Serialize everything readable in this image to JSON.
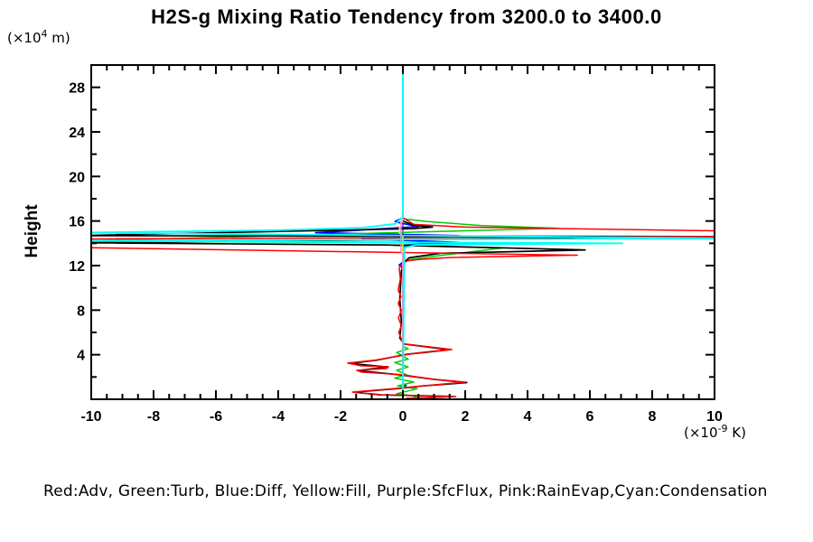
{
  "labels": {
    "y_unit_prefix": "(×10",
    "y_unit_sup": "4",
    "y_unit_suffix": " m)",
    "x_unit_prefix": "(×10",
    "x_unit_sup": "-9",
    "x_unit_suffix": " K)",
    "y_axis_title": "Height"
  },
  "chart_data": {
    "type": "line",
    "title": "H2S-g Mixing Ratio Tendency from 3200.0 to 3400.0",
    "xlabel": "(×10^-9 K)",
    "ylabel": "Height (×10^4 m)",
    "xlim": [
      -10,
      10
    ],
    "ylim": [
      0,
      30
    ],
    "x_major_ticks": [
      -10,
      -8,
      -6,
      -4,
      -2,
      0,
      2,
      4,
      6,
      8,
      10
    ],
    "x_minor_step": 0.5,
    "y_major_ticks": [
      4,
      8,
      12,
      16,
      20,
      24,
      28
    ],
    "y_minor_step": 2,
    "grid": false,
    "legend_position": "bottom",
    "legend_text": "Red:Adv, Green:Turb, Blue:Diff, Yellow:Fill, Purple:SfcFlux, Pink:RainEvap,Cyan:Condensation",
    "axis_note": "x = tendency value ×10^-9 K, y = height ×10^4 m; series points are [value, height]",
    "series": [
      {
        "name": "SfcFlux",
        "color_name": "Purple",
        "color": "#9932cc",
        "width": 1.5,
        "points": [
          [
            0,
            30
          ],
          [
            0,
            0
          ]
        ]
      },
      {
        "name": "Diff",
        "color_name": "Blue",
        "color": "#0000ff",
        "width": 1.7,
        "points": [
          [
            0,
            16.3
          ],
          [
            -0.25,
            15.95
          ],
          [
            0,
            15.78
          ],
          [
            0.5,
            15.5
          ],
          [
            -2.8,
            14.95
          ],
          [
            1.8,
            14.68
          ],
          [
            -1.3,
            14.4
          ],
          [
            1.8,
            14.08
          ],
          [
            0.05,
            13.85
          ],
          [
            0,
            12.3
          ],
          [
            -0.12,
            12.05
          ],
          [
            0,
            11.8
          ],
          [
            0,
            1.4
          ],
          [
            0.1,
            1.25
          ],
          [
            0,
            1.1
          ],
          [
            0,
            0
          ]
        ]
      },
      {
        "name": "Turb",
        "color_name": "Green",
        "color": "#00cc00",
        "width": 1.5,
        "points": [
          [
            0,
            16.2
          ],
          [
            0.8,
            15.95
          ],
          [
            2.5,
            15.6
          ],
          [
            5.0,
            15.35
          ],
          [
            -10.5,
            14.2
          ],
          [
            4.0,
            14.0
          ],
          [
            -0.3,
            13.82
          ],
          [
            3.2,
            13.58
          ],
          [
            0.9,
            12.8
          ],
          [
            0.15,
            12.5
          ],
          [
            0,
            12.2
          ],
          [
            0,
            4.75
          ],
          [
            0.17,
            4.55
          ],
          [
            -0.2,
            4.2
          ],
          [
            0.17,
            3.6
          ],
          [
            -0.26,
            3.3
          ],
          [
            0.17,
            2.9
          ],
          [
            -0.2,
            2.6
          ],
          [
            0.12,
            2.2
          ],
          [
            -0.26,
            1.9
          ],
          [
            0.35,
            1.54
          ],
          [
            -0.17,
            1.2
          ],
          [
            0.46,
            0.95
          ],
          [
            -0.2,
            0.5
          ],
          [
            0.45,
            0.25
          ],
          [
            0.26,
            0.05
          ]
        ]
      },
      {
        "name": "unlabeled-black",
        "color_name": "Black",
        "color": "#000000",
        "width": 1.7,
        "points": [
          [
            0,
            16.0
          ],
          [
            0.35,
            15.62
          ],
          [
            0.95,
            15.45
          ],
          [
            0.3,
            15.32
          ],
          [
            -10.5,
            14.68
          ],
          [
            10.5,
            14.6
          ],
          [
            -10.5,
            14.05
          ],
          [
            -0.5,
            13.85
          ],
          [
            5.85,
            13.4
          ],
          [
            1.2,
            13.1
          ],
          [
            0.2,
            12.7
          ],
          [
            0.05,
            12.35
          ],
          [
            -0.05,
            11.5
          ],
          [
            -0.1,
            9.0
          ],
          [
            -0.05,
            7.0
          ],
          [
            -0.1,
            5.5
          ],
          [
            0.05,
            4.95
          ],
          [
            1.5,
            4.45
          ],
          [
            0.15,
            4.05
          ],
          [
            -0.85,
            3.5
          ],
          [
            -1.7,
            3.22
          ],
          [
            -0.5,
            2.9
          ],
          [
            -1.45,
            2.58
          ],
          [
            -0.05,
            2.18
          ],
          [
            0.95,
            1.8
          ],
          [
            2.05,
            1.5
          ],
          [
            0.65,
            1.2
          ],
          [
            -0.2,
            0.95
          ],
          [
            -1.58,
            0.63
          ],
          [
            -0.7,
            0.4
          ],
          [
            1.62,
            0.26
          ],
          [
            0.1,
            0.06
          ]
        ]
      },
      {
        "name": "Adv",
        "color_name": "Red",
        "color": "#ff0000",
        "width": 1.5,
        "points": [
          [
            0,
            16.3
          ],
          [
            0.35,
            15.7
          ],
          [
            2,
            15.45
          ],
          [
            10.5,
            15.1
          ],
          [
            10.5,
            14.62
          ],
          [
            -10.5,
            14.38
          ],
          [
            -10.5,
            13.62
          ],
          [
            5.6,
            12.93
          ],
          [
            1.5,
            12.72
          ],
          [
            0.5,
            12.55
          ],
          [
            0.15,
            12.42
          ],
          [
            0.05,
            12.3
          ],
          [
            -0.12,
            11.8
          ],
          [
            -0.08,
            10.8
          ],
          [
            -0.15,
            9.8
          ],
          [
            -0.06,
            9.2
          ],
          [
            -0.15,
            8.6
          ],
          [
            -0.05,
            8.0
          ],
          [
            -0.14,
            7.3
          ],
          [
            -0.05,
            6.6
          ],
          [
            -0.13,
            6.0
          ],
          [
            -0.05,
            5.4
          ],
          [
            0.02,
            4.98
          ],
          [
            1.57,
            4.47
          ],
          [
            0.7,
            4.23
          ],
          [
            0.26,
            4.07
          ],
          [
            -0.9,
            3.5
          ],
          [
            -1.77,
            3.25
          ],
          [
            -1.33,
            3.0
          ],
          [
            -0.46,
            2.93
          ],
          [
            -0.52,
            2.76
          ],
          [
            -1.48,
            2.6
          ],
          [
            -1.33,
            2.44
          ],
          [
            0,
            2.2
          ],
          [
            0.4,
            2.03
          ],
          [
            1.0,
            1.79
          ],
          [
            2.0,
            1.54
          ],
          [
            0.7,
            1.22
          ],
          [
            -0.17,
            0.98
          ],
          [
            -1.62,
            0.65
          ],
          [
            -0.75,
            0.4
          ],
          [
            1.7,
            0.24
          ],
          [
            0.12,
            0.08
          ]
        ]
      },
      {
        "name": "Fill",
        "color_name": "Yellow",
        "color": "#ffff00",
        "width": 1.5,
        "points": [
          [
            0,
            16.0
          ],
          [
            -0.1,
            15.6
          ],
          [
            -0.12,
            15.0
          ],
          [
            0,
            14.6
          ],
          [
            0,
            0
          ]
        ]
      },
      {
        "name": "RainEvap",
        "color_name": "Pink",
        "color": "#ee88ee",
        "width": 1.5,
        "points": [
          [
            0,
            30
          ],
          [
            0,
            16.1
          ],
          [
            -0.06,
            15.9
          ],
          [
            -0.06,
            13.25
          ],
          [
            0,
            13.05
          ],
          [
            0,
            0
          ]
        ]
      },
      {
        "name": "Condensation",
        "color_name": "Cyan",
        "color": "#00ffff",
        "width": 1.8,
        "points": [
          [
            0,
            30
          ],
          [
            0,
            16.35
          ],
          [
            -0.25,
            15.75
          ],
          [
            -1.3,
            15.4
          ],
          [
            -4,
            15.18
          ],
          [
            -10.5,
            14.95
          ],
          [
            10.5,
            14.45
          ],
          [
            -10.5,
            14.22
          ],
          [
            7.05,
            14.0
          ],
          [
            0.4,
            13.85
          ],
          [
            0.05,
            13.6
          ],
          [
            0,
            0
          ]
        ]
      }
    ]
  }
}
